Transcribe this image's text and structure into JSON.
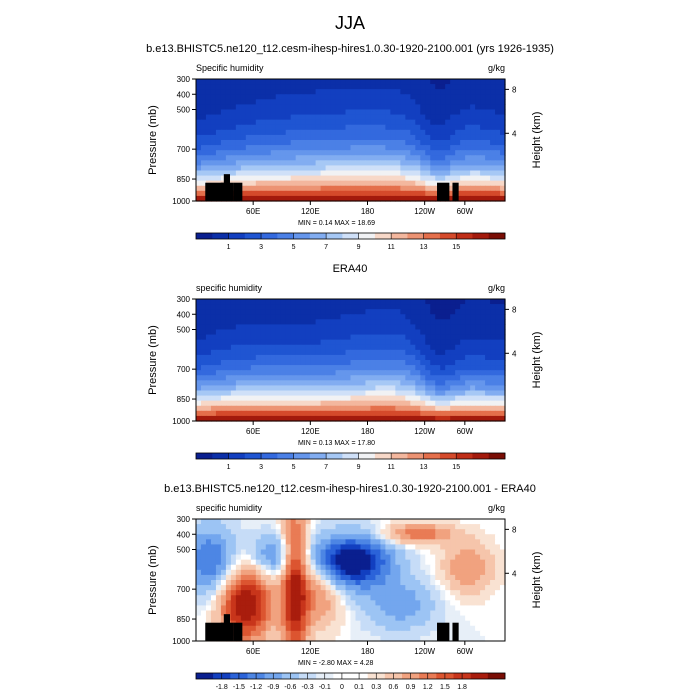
{
  "figure": {
    "title": "JJA"
  },
  "palettes": {
    "abs": [
      "#0a1f8f",
      "#0b2fa8",
      "#123fc0",
      "#1f55d2",
      "#3369de",
      "#4b80e6",
      "#6596ec",
      "#82adf1",
      "#a6c8f5",
      "#cfe0f8",
      "#f1f2f4",
      "#f7d8c8",
      "#f3b79e",
      "#ec9373",
      "#e46f4b",
      "#d54a2b",
      "#c02e17",
      "#a31a0c",
      "#7a0e05"
    ],
    "diff": [
      "#0a1f8f",
      "#123fc0",
      "#2b63d9",
      "#4d86e4",
      "#73a6ee",
      "#9cc4f4",
      "#c6dcf7",
      "#e7eff8",
      "#ffffff",
      "#ffffff",
      "#f9e2d2",
      "#f6c5ab",
      "#f1a27f",
      "#e97b55",
      "#dc5530",
      "#c8351b",
      "#a91d0d",
      "#7a0e05"
    ]
  },
  "chart_data": [
    {
      "type": "heatmap",
      "title": "b.e13.BHISTC5.ne120_t12.cesm-ihesp-hires1.0.30-1920-2100.001 (yrs 1926-1935)",
      "left_label": "Specific humidity",
      "right_label": "g/kg",
      "ylabel": "Pressure (mb)",
      "ylabel_right": "Height (km)",
      "y_ticks": [
        "300",
        "400",
        "500",
        "700",
        "850",
        "1000"
      ],
      "y_right_ticks": [
        "8",
        "4"
      ],
      "x_ticks": [
        "60E",
        "120E",
        "180",
        "120W",
        "60W"
      ],
      "stats": "MIN =   0.14  MAX =   18.69",
      "colorbar_labels": [
        "1",
        "3",
        "5",
        "7",
        "9",
        "11",
        "13",
        "15"
      ],
      "min": 0.14,
      "max": 18.69,
      "palette": "abs",
      "topography": true
    },
    {
      "type": "heatmap",
      "title": "ERA40",
      "left_label": "specific humidity",
      "right_label": "g/kg",
      "ylabel": "Pressure (mb)",
      "ylabel_right": "Height (km)",
      "y_ticks": [
        "300",
        "400",
        "500",
        "700",
        "850",
        "1000"
      ],
      "y_right_ticks": [
        "8",
        "4"
      ],
      "x_ticks": [
        "60E",
        "120E",
        "180",
        "120W",
        "60W"
      ],
      "stats": "MIN =   0.13  MAX =   17.80",
      "colorbar_labels": [
        "1",
        "3",
        "5",
        "7",
        "9",
        "11",
        "13",
        "15"
      ],
      "min": 0.13,
      "max": 17.8,
      "palette": "abs",
      "topography": false
    },
    {
      "type": "heatmap",
      "title": "b.e13.BHISTC5.ne120_t12.cesm-ihesp-hires1.0.30-1920-2100.001 - ERA40",
      "left_label": "specific humidity",
      "right_label": "g/kg",
      "ylabel": "Pressure (mb)",
      "ylabel_right": "Height (km)",
      "y_ticks": [
        "300",
        "400",
        "500",
        "700",
        "850",
        "1000"
      ],
      "y_right_ticks": [
        "8",
        "4"
      ],
      "x_ticks": [
        "60E",
        "120E",
        "180",
        "120W",
        "60W"
      ],
      "stats": "MIN =  -2.80  MAX =   4.28",
      "colorbar_labels": [
        "-1.8",
        "-1.5",
        "-1.2",
        "-0.9",
        "-0.6",
        "-0.3",
        "-0.1",
        "0",
        "0.1",
        "0.3",
        "0.6",
        "0.9",
        "1.2",
        "1.5",
        "1.8"
      ],
      "min": -2.8,
      "max": 4.28,
      "palette": "diff",
      "topography": true
    }
  ]
}
